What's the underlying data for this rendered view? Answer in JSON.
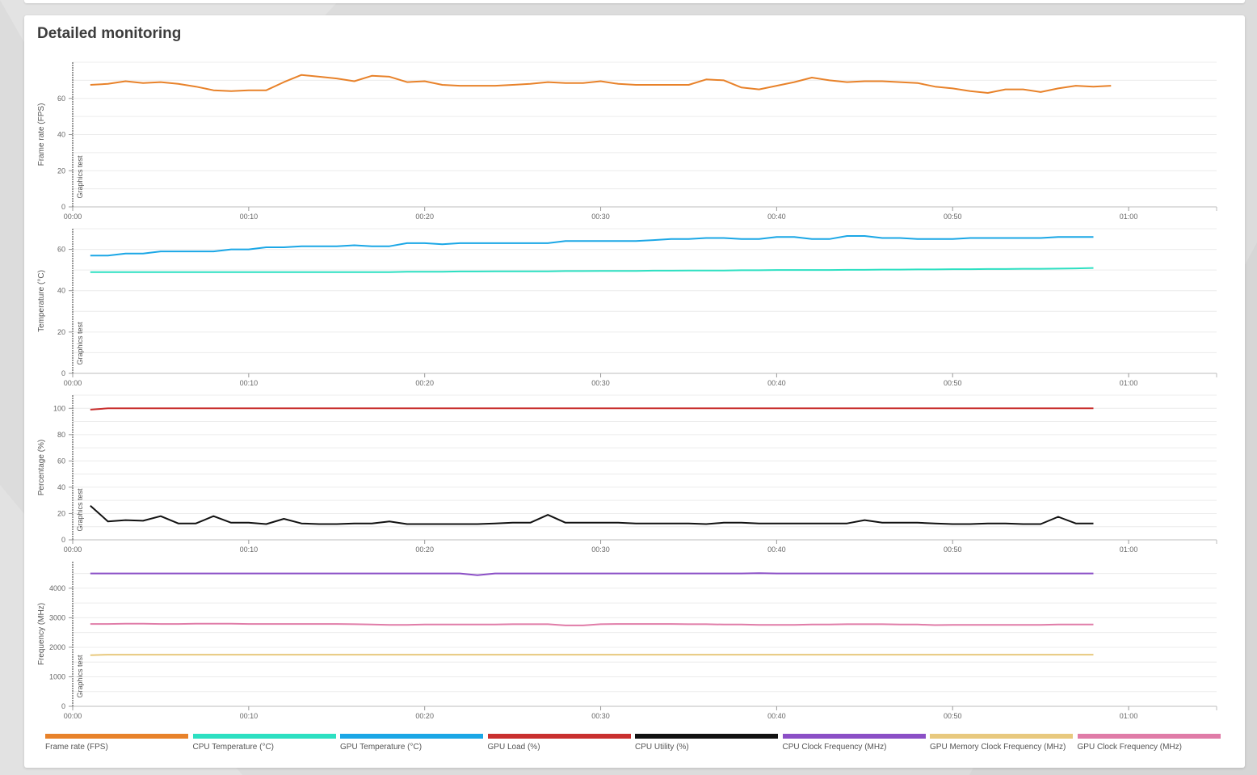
{
  "page": {
    "title": "Detailed monitoring"
  },
  "marker_label": "Graphics test",
  "chart_data": [
    {
      "type": "line",
      "ylabel": "Frame rate (FPS)",
      "ylim": [
        0,
        80
      ],
      "yticks": [
        0,
        20,
        40,
        60
      ],
      "grid_step": 10,
      "xlim": [
        "00:00",
        "01:05"
      ],
      "xticks": [
        "00:00",
        "00:10",
        "00:20",
        "00:30",
        "00:40",
        "00:50",
        "01:00"
      ],
      "series": [
        {
          "name": "Frame rate (FPS)",
          "color": "#e8822a",
          "start": "00:01",
          "values": [
            67.5,
            68,
            69.5,
            68.5,
            69,
            68,
            66.5,
            64.5,
            64,
            64.5,
            64.5,
            69,
            73,
            72,
            71,
            69.5,
            72.5,
            72,
            69,
            69.5,
            67.5,
            67,
            67,
            67,
            67.5,
            68,
            69,
            68.5,
            68.5,
            69.5,
            68,
            67.5,
            67.5,
            67.5,
            67.5,
            70.5,
            70,
            66,
            65,
            67,
            69,
            71.5,
            70,
            69,
            69.5,
            69.5,
            69,
            68.5,
            66.5,
            65.5,
            64,
            63,
            65,
            65,
            63.5,
            65.5,
            67,
            66.5,
            67
          ]
        }
      ]
    },
    {
      "type": "line",
      "ylabel": "Temperature (°C)",
      "ylim": [
        0,
        70
      ],
      "yticks": [
        0,
        20,
        40,
        60
      ],
      "grid_step": 10,
      "xlim": [
        "00:00",
        "01:05"
      ],
      "xticks": [
        "00:00",
        "00:10",
        "00:20",
        "00:30",
        "00:40",
        "00:50",
        "01:00"
      ],
      "series": [
        {
          "name": "GPU Temperature (°C)",
          "color": "#1ba7e6",
          "start": "00:01",
          "values": [
            57,
            57,
            58,
            58,
            59,
            59,
            59,
            59,
            60,
            60,
            61,
            61,
            61.5,
            61.5,
            61.5,
            62,
            61.5,
            61.5,
            63,
            63,
            62.5,
            63,
            63,
            63,
            63,
            63,
            63,
            64,
            64,
            64,
            64,
            64,
            64.5,
            65,
            65,
            65.5,
            65.5,
            65,
            65,
            66,
            66,
            65,
            65,
            66.5,
            66.5,
            65.5,
            65.5,
            65,
            65,
            65,
            65.5,
            65.5,
            65.5,
            65.5,
            65.5,
            66,
            66,
            66
          ]
        },
        {
          "name": "CPU Temperature (°C)",
          "color": "#2de0c2",
          "start": "00:01",
          "values": [
            49,
            49,
            49,
            49,
            49,
            49,
            49,
            49,
            49,
            49,
            49,
            49,
            49,
            49,
            49,
            49,
            49,
            49,
            49.2,
            49.2,
            49.2,
            49.3,
            49.3,
            49.4,
            49.4,
            49.4,
            49.4,
            49.5,
            49.5,
            49.6,
            49.6,
            49.6,
            49.7,
            49.7,
            49.8,
            49.8,
            49.8,
            49.9,
            49.9,
            50,
            50,
            50,
            50,
            50.1,
            50.1,
            50.2,
            50.2,
            50.3,
            50.3,
            50.4,
            50.4,
            50.5,
            50.5,
            50.6,
            50.6,
            50.7,
            50.8,
            51
          ]
        }
      ]
    },
    {
      "type": "line",
      "ylabel": "Percentage (%)",
      "ylim": [
        0,
        110
      ],
      "yticks": [
        0,
        20,
        40,
        60,
        80,
        100
      ],
      "grid_step": 10,
      "xlim": [
        "00:00",
        "01:05"
      ],
      "xticks": [
        "00:00",
        "00:10",
        "00:20",
        "00:30",
        "00:40",
        "00:50",
        "01:00"
      ],
      "series": [
        {
          "name": "GPU Load (%)",
          "color": "#c9302f",
          "start": "00:01",
          "values": [
            99,
            100,
            100,
            100,
            100,
            100,
            100,
            100,
            100,
            100,
            100,
            100,
            100,
            100,
            100,
            100,
            100,
            100,
            100,
            100,
            100,
            100,
            100,
            100,
            100,
            100,
            100,
            100,
            100,
            100,
            100,
            100,
            100,
            100,
            100,
            100,
            100,
            100,
            100,
            100,
            100,
            100,
            100,
            100,
            100,
            100,
            100,
            100,
            100,
            100,
            100,
            100,
            100,
            100,
            100,
            100,
            100,
            100
          ]
        },
        {
          "name": "CPU Utility (%)",
          "color": "#111111",
          "start": "00:01",
          "values": [
            26,
            14,
            15,
            14.5,
            18,
            12.5,
            12.5,
            18,
            13,
            13,
            12,
            16,
            12.5,
            12,
            12,
            12.5,
            12.5,
            14,
            12,
            12,
            12,
            12,
            12,
            12.5,
            13,
            13,
            19,
            13,
            13,
            13,
            13,
            12.5,
            12.5,
            12.5,
            12.5,
            12,
            13,
            13,
            12.5,
            12.5,
            12.5,
            12.5,
            12.5,
            12.5,
            15,
            13,
            13,
            13,
            12.5,
            12,
            12,
            12.5,
            12.5,
            12,
            12,
            17.5,
            12.5,
            12.5
          ]
        }
      ]
    },
    {
      "type": "line",
      "ylabel": "Frequency (MHz)",
      "ylim": [
        0,
        4900
      ],
      "yticks": [
        0,
        1000,
        2000,
        3000,
        4000
      ],
      "grid_step": 500,
      "xlim": [
        "00:00",
        "01:05"
      ],
      "xticks": [
        "00:00",
        "00:10",
        "00:20",
        "00:30",
        "00:40",
        "00:50",
        "01:00"
      ],
      "series": [
        {
          "name": "CPU Clock Frequency (MHz)",
          "color": "#8b4fc6",
          "start": "00:01",
          "values": [
            4500,
            4500,
            4500,
            4500,
            4500,
            4500,
            4500,
            4500,
            4500,
            4500,
            4500,
            4500,
            4500,
            4500,
            4500,
            4500,
            4500,
            4500,
            4500,
            4500,
            4500,
            4500,
            4440,
            4500,
            4500,
            4500,
            4500,
            4500,
            4500,
            4500,
            4500,
            4500,
            4500,
            4500,
            4500,
            4500,
            4500,
            4500,
            4510,
            4500,
            4500,
            4500,
            4500,
            4500,
            4500,
            4500,
            4500,
            4500,
            4500,
            4500,
            4500,
            4500,
            4500,
            4500,
            4500,
            4500,
            4500,
            4500
          ]
        },
        {
          "name": "GPU Clock Frequency (MHz)",
          "color": "#e07ca8",
          "start": "00:01",
          "values": [
            2790,
            2790,
            2800,
            2800,
            2790,
            2790,
            2800,
            2800,
            2800,
            2790,
            2790,
            2790,
            2790,
            2790,
            2790,
            2780,
            2770,
            2760,
            2760,
            2770,
            2770,
            2770,
            2770,
            2770,
            2780,
            2780,
            2780,
            2740,
            2740,
            2780,
            2790,
            2790,
            2790,
            2790,
            2780,
            2780,
            2770,
            2770,
            2760,
            2760,
            2760,
            2770,
            2770,
            2780,
            2780,
            2780,
            2770,
            2770,
            2750,
            2760,
            2760,
            2760,
            2760,
            2760,
            2760,
            2770,
            2770,
            2770
          ]
        },
        {
          "name": "GPU Memory Clock Frequency (MHz)",
          "color": "#e8c97e",
          "start": "00:01",
          "values": [
            1730,
            1750,
            1750,
            1750,
            1750,
            1750,
            1750,
            1750,
            1750,
            1750,
            1750,
            1750,
            1750,
            1750,
            1750,
            1750,
            1750,
            1750,
            1750,
            1750,
            1750,
            1750,
            1750,
            1750,
            1750,
            1750,
            1750,
            1750,
            1750,
            1750,
            1750,
            1750,
            1750,
            1750,
            1750,
            1750,
            1750,
            1750,
            1750,
            1750,
            1750,
            1750,
            1750,
            1750,
            1750,
            1750,
            1750,
            1750,
            1750,
            1750,
            1750,
            1750,
            1750,
            1750,
            1750,
            1750,
            1750,
            1750
          ]
        }
      ]
    }
  ],
  "legend": [
    {
      "label": "Frame rate (FPS)",
      "color": "#e8822a"
    },
    {
      "label": "CPU Temperature (°C)",
      "color": "#2de0c2"
    },
    {
      "label": "GPU Temperature (°C)",
      "color": "#1ba7e6"
    },
    {
      "label": "GPU Load (%)",
      "color": "#c9302f"
    },
    {
      "label": "CPU Utility (%)",
      "color": "#111111"
    },
    {
      "label": "CPU Clock Frequency (MHz)",
      "color": "#8b4fc6"
    },
    {
      "label": "GPU Memory Clock Frequency (MHz)",
      "color": "#e8c97e"
    },
    {
      "label": "GPU Clock Frequency (MHz)",
      "color": "#e07ca8"
    }
  ]
}
